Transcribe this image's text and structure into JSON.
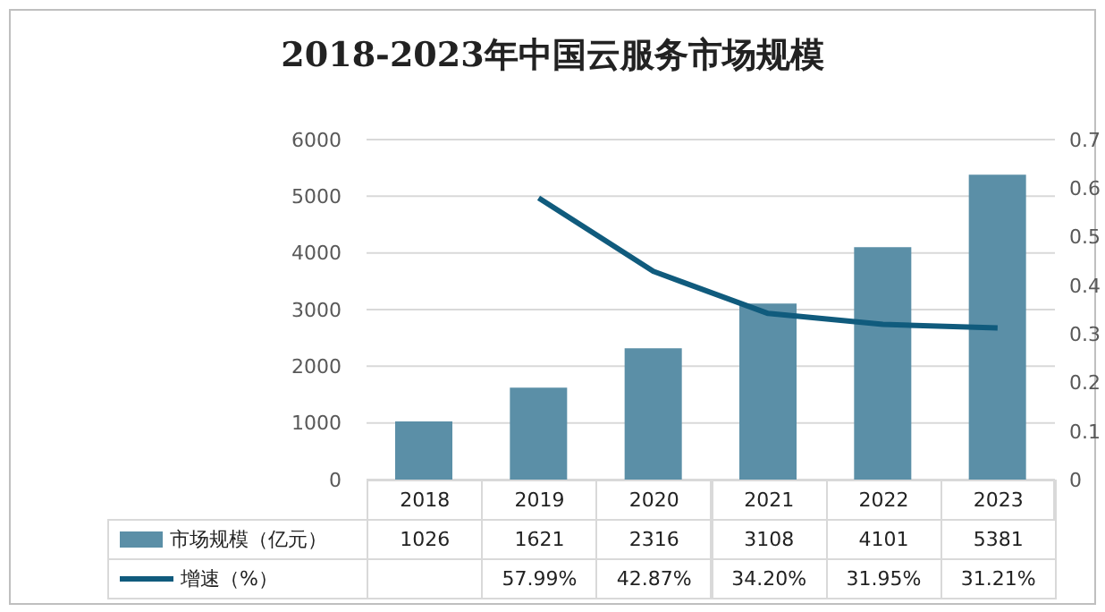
{
  "chart_data": {
    "type": "bar",
    "title": "2018-2023年中国云服务市场规模",
    "categories": [
      "2018",
      "2019",
      "2020",
      "2021",
      "2022",
      "2023"
    ],
    "series": [
      {
        "name": "市场规模（亿元）",
        "color": "#5b8fa7",
        "values": [
          1026,
          1621,
          2316,
          3108,
          4101,
          5381
        ],
        "value_labels": [
          "1026",
          "1621",
          "2316",
          "3108",
          "4101",
          "5381"
        ]
      },
      {
        "name": "增速（%）",
        "type": "line",
        "axis": "y2",
        "color": "#105b7d",
        "values": [
          null,
          0.5799,
          0.4287,
          0.342,
          0.3195,
          0.3121
        ],
        "value_labels": [
          null,
          "57.99%",
          "42.87%",
          "34.20%",
          "31.95%",
          "31.21%"
        ]
      }
    ],
    "ylim": [
      0,
      6000
    ],
    "yticks": [
      0,
      1000,
      2000,
      3000,
      4000,
      5000,
      6000
    ],
    "y2lim": [
      0,
      0.7
    ],
    "y2ticks": [
      0,
      0.1,
      0.2,
      0.3,
      0.4,
      0.5,
      0.6,
      0.7
    ],
    "grid": "y",
    "legend": "bottom",
    "marker": "none",
    "line_style": "solid"
  }
}
